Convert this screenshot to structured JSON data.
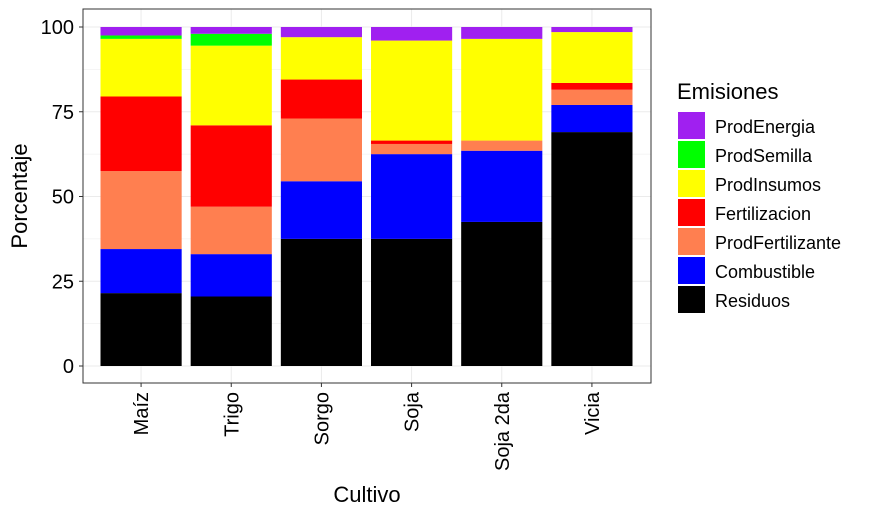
{
  "chart_data": {
    "type": "bar",
    "stacked": true,
    "categories": [
      "Maíz",
      "Trigo",
      "Sorgo",
      "Soja",
      "Soja 2da",
      "Vicia"
    ],
    "xlabel": "Cultivo",
    "ylabel": "Porcentaje",
    "ylim": [
      0,
      100
    ],
    "yticks": [
      "0",
      "25",
      "50",
      "75",
      "100"
    ],
    "grid": true,
    "legend": {
      "title": "Emisiones",
      "position": "right",
      "order": [
        "ProdEnergia",
        "ProdSemilla",
        "ProdInsumos",
        "Fertilizacion",
        "ProdFertilizante",
        "Combustible",
        "Residuos"
      ]
    },
    "series": [
      {
        "name": "Residuos",
        "color": "#000000",
        "values": [
          21.5,
          20.5,
          37.5,
          37.5,
          42.5,
          69
        ]
      },
      {
        "name": "Combustible",
        "color": "#0000FF",
        "values": [
          13,
          12.5,
          17,
          25,
          21,
          8
        ]
      },
      {
        "name": "ProdFertilizante",
        "color": "#FF7F50",
        "values": [
          23,
          14,
          18.5,
          3,
          3,
          4.5
        ]
      },
      {
        "name": "Fertilizacion",
        "color": "#FF0000",
        "values": [
          22,
          24,
          11.5,
          1,
          0,
          2
        ]
      },
      {
        "name": "ProdInsumos",
        "color": "#FFFF00",
        "values": [
          17,
          23.5,
          12.5,
          29.5,
          30,
          15
        ]
      },
      {
        "name": "ProdSemilla",
        "color": "#00FF00",
        "values": [
          1,
          3.5,
          0,
          0,
          0,
          0
        ]
      },
      {
        "name": "ProdEnergia",
        "color": "#A020F0",
        "values": [
          2.5,
          2,
          3,
          4,
          3.5,
          1.5
        ]
      }
    ]
  }
}
